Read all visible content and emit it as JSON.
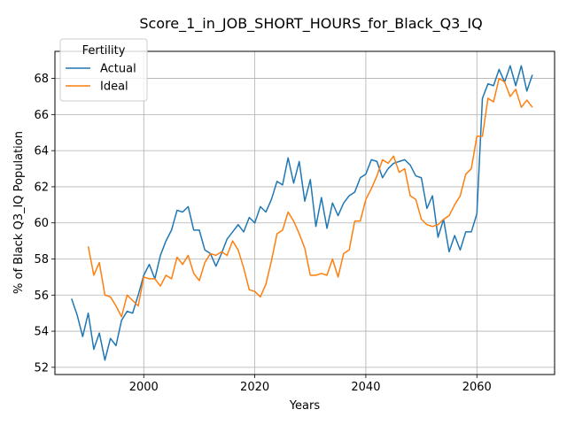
{
  "chart_data": {
    "type": "line",
    "title": "Score_1_in_JOB_SHORT_HOURS_for_Black_Q3_IQ",
    "xlabel": "Years",
    "ylabel": "% of Black Q3_IQ Population",
    "xlim": [
      1984,
      2074
    ],
    "ylim": [
      51.6,
      69.5
    ],
    "xticks": [
      2000,
      2020,
      2040,
      2060
    ],
    "yticks": [
      52,
      54,
      56,
      58,
      60,
      62,
      64,
      66,
      68
    ],
    "grid": true,
    "legend": {
      "title": "Fertility",
      "placement": "top-left"
    },
    "series": [
      {
        "name": "Actual",
        "color": "#1f77b4",
        "x": [
          1987,
          1988,
          1989,
          1990,
          1991,
          1992,
          1993,
          1994,
          1995,
          1996,
          1997,
          1998,
          1999,
          2000,
          2001,
          2002,
          2003,
          2004,
          2005,
          2006,
          2007,
          2008,
          2009,
          2010,
          2011,
          2012,
          2013,
          2014,
          2015,
          2016,
          2017,
          2018,
          2019,
          2020,
          2021,
          2022,
          2023,
          2024,
          2025,
          2026,
          2027,
          2028,
          2029,
          2030,
          2031,
          2032,
          2033,
          2034,
          2035,
          2036,
          2037,
          2038,
          2039,
          2040,
          2041,
          2042,
          2043,
          2044,
          2045,
          2046,
          2047,
          2048,
          2049,
          2050,
          2051,
          2052,
          2053,
          2054,
          2055,
          2056,
          2057,
          2058,
          2059,
          2060,
          2061,
          2062,
          2063,
          2064,
          2065,
          2066,
          2067,
          2068,
          2069,
          2070
        ],
        "values": [
          55.8,
          54.9,
          53.7,
          55.0,
          53.0,
          53.9,
          52.4,
          53.6,
          53.2,
          54.6,
          55.1,
          55.0,
          56.0,
          57.1,
          57.7,
          56.9,
          58.2,
          59.0,
          59.6,
          60.7,
          60.6,
          60.9,
          59.6,
          59.6,
          58.5,
          58.3,
          57.6,
          58.3,
          59.1,
          59.5,
          59.9,
          59.5,
          60.3,
          60.0,
          60.9,
          60.6,
          61.3,
          62.3,
          62.1,
          63.6,
          62.2,
          63.4,
          61.2,
          62.4,
          59.8,
          61.4,
          59.7,
          61.1,
          60.4,
          61.1,
          61.5,
          61.7,
          62.5,
          62.7,
          63.5,
          63.4,
          62.5,
          63.0,
          63.3,
          63.4,
          63.5,
          63.2,
          62.6,
          62.5,
          60.8,
          61.5,
          59.2,
          60.2,
          58.4,
          59.3,
          58.5,
          59.5,
          59.5,
          60.5,
          66.9,
          67.7,
          67.6,
          68.5,
          67.8,
          68.7,
          67.6,
          68.7,
          67.3,
          68.2
        ]
      },
      {
        "name": "Ideal",
        "color": "#ff7f0e",
        "x": [
          1990,
          1991,
          1992,
          1993,
          1994,
          1995,
          1996,
          1997,
          1998,
          1999,
          2000,
          2001,
          2002,
          2003,
          2004,
          2005,
          2006,
          2007,
          2008,
          2009,
          2010,
          2011,
          2012,
          2013,
          2014,
          2015,
          2016,
          2017,
          2018,
          2019,
          2020,
          2021,
          2022,
          2023,
          2024,
          2025,
          2026,
          2027,
          2028,
          2029,
          2030,
          2031,
          2032,
          2033,
          2034,
          2035,
          2036,
          2037,
          2038,
          2039,
          2040,
          2041,
          2042,
          2043,
          2044,
          2045,
          2046,
          2047,
          2048,
          2049,
          2050,
          2051,
          2052,
          2053,
          2054,
          2055,
          2056,
          2057,
          2058,
          2059,
          2060,
          2061,
          2062,
          2063,
          2064,
          2065,
          2066,
          2067,
          2068,
          2069,
          2070
        ],
        "values": [
          58.7,
          57.1,
          57.8,
          56.0,
          55.9,
          55.4,
          54.8,
          56.0,
          55.7,
          55.4,
          57.0,
          56.9,
          56.9,
          56.5,
          57.1,
          56.9,
          58.1,
          57.7,
          58.2,
          57.2,
          56.8,
          57.8,
          58.3,
          58.2,
          58.4,
          58.2,
          59.0,
          58.5,
          57.5,
          56.3,
          56.2,
          55.9,
          56.6,
          57.9,
          59.4,
          59.6,
          60.6,
          60.1,
          59.4,
          58.6,
          57.1,
          57.1,
          57.2,
          57.1,
          58.0,
          57.0,
          58.3,
          58.5,
          60.1,
          60.1,
          61.3,
          61.9,
          62.6,
          63.5,
          63.3,
          63.7,
          62.8,
          63.0,
          61.5,
          61.3,
          60.2,
          59.9,
          59.8,
          59.9,
          60.2,
          60.4,
          61.0,
          61.5,
          62.7,
          63.0,
          64.8,
          64.8,
          66.9,
          66.7,
          68.0,
          67.8,
          67.0,
          67.4,
          66.4,
          66.8,
          66.4
        ]
      }
    ]
  }
}
